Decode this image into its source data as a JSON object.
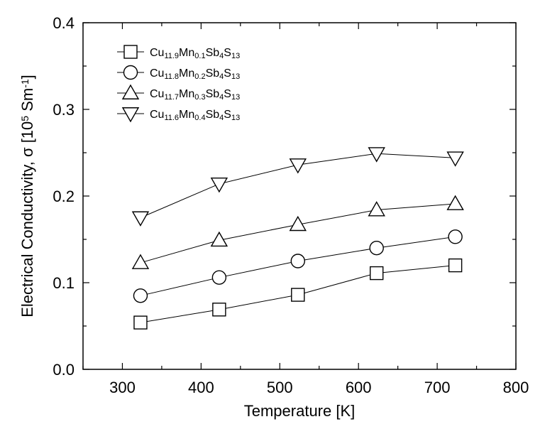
{
  "chart_data": {
    "type": "line",
    "title": "",
    "xlabel": "Temperature [K]",
    "ylabel": "Electrical Conductivity, σ [10⁵ Sm⁻¹]",
    "xlim": [
      250,
      800
    ],
    "ylim": [
      0.0,
      0.4
    ],
    "x_ticks": [
      300,
      400,
      500,
      600,
      700,
      800
    ],
    "y_ticks": [
      0.0,
      0.1,
      0.2,
      0.3,
      0.4
    ],
    "x_tick_labels": [
      "300",
      "400",
      "500",
      "600",
      "700",
      "800"
    ],
    "y_tick_labels": [
      "0.0",
      "0.1",
      "0.2",
      "0.3",
      "0.4"
    ],
    "x": [
      323,
      423,
      523,
      623,
      723
    ],
    "legend_position": "top-left",
    "grid": false,
    "series": [
      {
        "name": "Cu11.9Mn0.1Sb4S13",
        "label_parts": [
          [
            "Cu",
            ""
          ],
          [
            "11.9",
            "sub"
          ],
          [
            "Mn",
            ""
          ],
          [
            "0.1",
            "sub"
          ],
          [
            "Sb",
            ""
          ],
          [
            "4",
            "sub"
          ],
          [
            "S",
            ""
          ],
          [
            "13",
            "sub"
          ]
        ],
        "marker": "square",
        "values": [
          0.054,
          0.069,
          0.086,
          0.111,
          0.12
        ]
      },
      {
        "name": "Cu11.8Mn0.2Sb4S13",
        "label_parts": [
          [
            "Cu",
            ""
          ],
          [
            "11.8",
            "sub"
          ],
          [
            "Mn",
            ""
          ],
          [
            "0.2",
            "sub"
          ],
          [
            "Sb",
            ""
          ],
          [
            "4",
            "sub"
          ],
          [
            "S",
            ""
          ],
          [
            "13",
            "sub"
          ]
        ],
        "marker": "circle",
        "values": [
          0.085,
          0.106,
          0.125,
          0.14,
          0.153
        ]
      },
      {
        "name": "Cu11.7Mn0.3Sb4S13",
        "label_parts": [
          [
            "Cu",
            ""
          ],
          [
            "11.7",
            "sub"
          ],
          [
            "Mn",
            ""
          ],
          [
            "0.3",
            "sub"
          ],
          [
            "Sb",
            ""
          ],
          [
            "4",
            "sub"
          ],
          [
            "S",
            ""
          ],
          [
            "13",
            "sub"
          ]
        ],
        "marker": "triangle-up",
        "values": [
          0.123,
          0.149,
          0.167,
          0.184,
          0.191
        ]
      },
      {
        "name": "Cu11.6Mn0.4Sb4S13",
        "label_parts": [
          [
            "Cu",
            ""
          ],
          [
            "11.6",
            "sub"
          ],
          [
            "Mn",
            ""
          ],
          [
            "0.4",
            "sub"
          ],
          [
            "Sb",
            ""
          ],
          [
            "4",
            "sub"
          ],
          [
            "S",
            ""
          ],
          [
            "13",
            "sub"
          ]
        ],
        "marker": "triangle-down",
        "values": [
          0.175,
          0.214,
          0.236,
          0.249,
          0.244
        ]
      }
    ]
  }
}
